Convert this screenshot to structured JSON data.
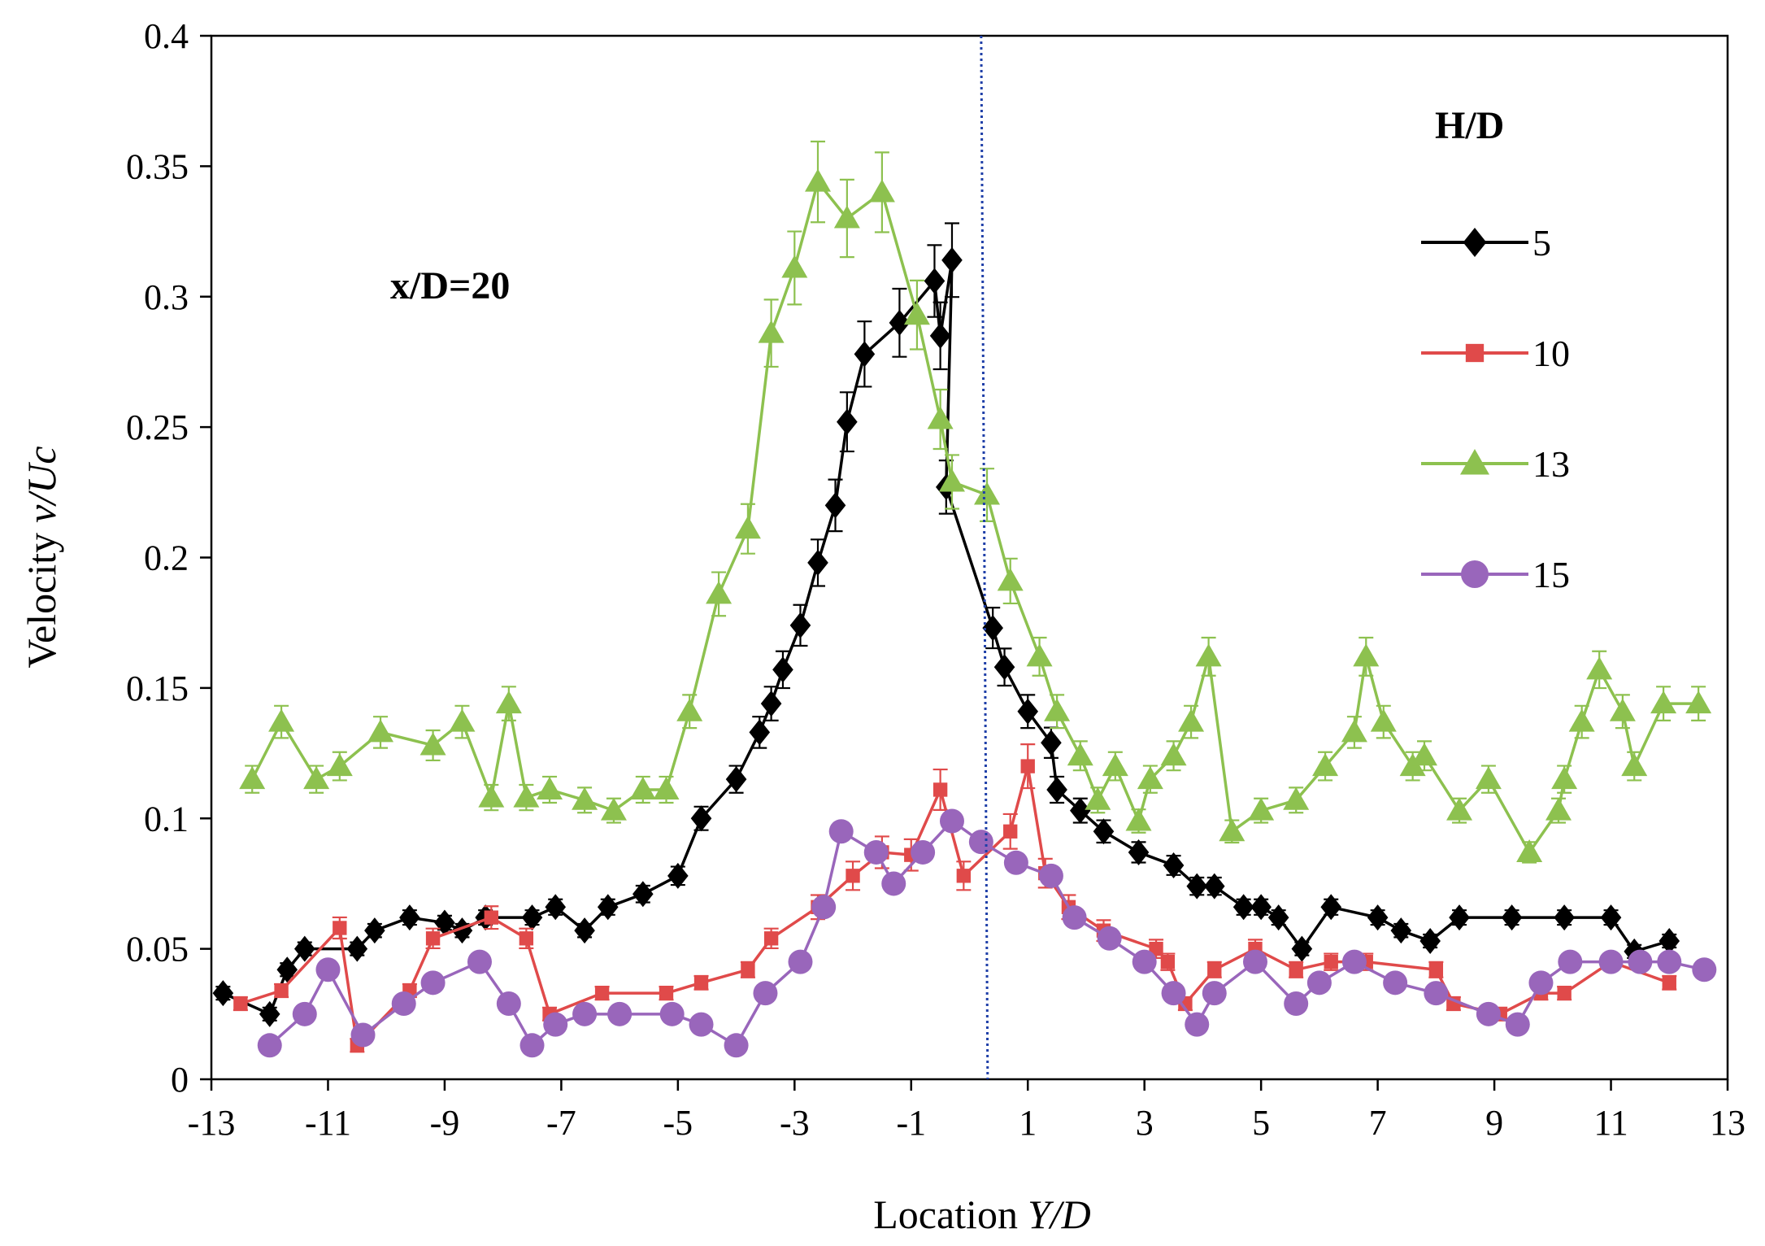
{
  "chart_data": {
    "type": "line",
    "title": "",
    "xlabel": "Location",
    "xlabel_italic": "Y/D",
    "ylabel": "Velocity",
    "ylabel_italic": "v/Uc",
    "xlim": [
      -13,
      13
    ],
    "ylim": [
      0,
      0.4
    ],
    "xticks": [
      "-13",
      "-11",
      "-9",
      "-7",
      "-5",
      "-3",
      "-1",
      "1",
      "3",
      "5",
      "7",
      "9",
      "11",
      "13"
    ],
    "yticks": [
      "0",
      "0.05",
      "0.1",
      "0.15",
      "0.2",
      "0.25",
      "0.3",
      "0.35",
      "0.4"
    ],
    "annotation": "x/D=20",
    "reference_line_x": 0.2,
    "legend_title": "H/D",
    "legend_position": "right",
    "grid": false,
    "series": [
      {
        "name": "5",
        "color": "#000000",
        "marker": "diamond",
        "x": [
          -12.8,
          -12.0,
          -11.7,
          -11.4,
          -10.5,
          -10.2,
          -9.6,
          -9.0,
          -8.7,
          -8.3,
          -7.5,
          -7.1,
          -6.6,
          -6.2,
          -5.6,
          -5.0,
          -4.6,
          -4.0,
          -3.6,
          -3.4,
          -3.2,
          -2.9,
          -2.6,
          -2.3,
          -2.1,
          -1.8,
          -1.2,
          -0.6,
          -0.5,
          -0.3,
          -0.4,
          0.4,
          0.6,
          1.0,
          1.4,
          1.5,
          1.9,
          2.3,
          2.9,
          3.5,
          3.9,
          4.2,
          4.7,
          5.0,
          5.3,
          5.7,
          6.2,
          7.0,
          7.4,
          7.9,
          8.4,
          9.3,
          10.2,
          11.0,
          11.4,
          12.0
        ],
        "y": [
          0.033,
          0.025,
          0.042,
          0.05,
          0.05,
          0.057,
          0.062,
          0.06,
          0.057,
          0.062,
          0.062,
          0.066,
          0.057,
          0.066,
          0.071,
          0.078,
          0.1,
          0.115,
          0.133,
          0.144,
          0.157,
          0.174,
          0.198,
          0.22,
          0.252,
          0.278,
          0.29,
          0.306,
          0.285,
          0.314,
          0.227,
          0.173,
          0.158,
          0.141,
          0.129,
          0.111,
          0.103,
          0.095,
          0.087,
          0.082,
          0.074,
          0.074,
          0.066,
          0.066,
          0.062,
          0.05,
          0.066,
          0.062,
          0.057,
          0.053,
          0.062,
          0.062,
          0.062,
          0.062,
          0.049,
          0.053
        ]
      },
      {
        "name": "10",
        "color": "#e04a4a",
        "marker": "square",
        "x": [
          -12.5,
          -11.8,
          -10.8,
          -10.5,
          -9.6,
          -9.2,
          -8.2,
          -7.6,
          -7.2,
          -6.3,
          -5.2,
          -4.6,
          -3.8,
          -3.4,
          -2.6,
          -2.0,
          -1.5,
          -1.0,
          -0.5,
          -0.1,
          0.7,
          1.0,
          1.3,
          1.7,
          2.3,
          3.2,
          3.4,
          3.7,
          4.2,
          4.9,
          5.6,
          6.2,
          6.8,
          8.0,
          8.3,
          9.1,
          9.8,
          10.2,
          11.0,
          12.0
        ],
        "y": [
          0.029,
          0.034,
          0.058,
          0.013,
          0.034,
          0.054,
          0.062,
          0.054,
          0.025,
          0.033,
          0.033,
          0.037,
          0.042,
          0.054,
          0.066,
          0.078,
          0.087,
          0.086,
          0.111,
          0.078,
          0.095,
          0.12,
          0.079,
          0.066,
          0.057,
          0.05,
          0.045,
          0.029,
          0.042,
          0.05,
          0.042,
          0.045,
          0.045,
          0.042,
          0.029,
          0.025,
          0.033,
          0.033,
          0.045,
          0.037
        ]
      },
      {
        "name": "13",
        "color": "#8dc14f",
        "marker": "triangle",
        "x": [
          -12.3,
          -11.8,
          -11.2,
          -10.8,
          -10.1,
          -9.2,
          -8.7,
          -8.2,
          -7.9,
          -7.6,
          -7.2,
          -6.6,
          -6.1,
          -5.6,
          -5.2,
          -4.8,
          -4.3,
          -3.8,
          -3.4,
          -3.0,
          -2.6,
          -2.1,
          -1.5,
          -0.9,
          -0.5,
          -0.3,
          0.3,
          0.7,
          1.2,
          1.5,
          1.9,
          2.2,
          2.5,
          2.9,
          3.1,
          3.5,
          3.8,
          4.1,
          4.5,
          5.0,
          5.6,
          6.1,
          6.6,
          6.8,
          7.1,
          7.6,
          7.8,
          8.4,
          8.9,
          9.6,
          10.1,
          10.2,
          10.5,
          10.8,
          11.2,
          11.4,
          11.9,
          12.5
        ],
        "y": [
          0.115,
          0.137,
          0.115,
          0.12,
          0.133,
          0.128,
          0.137,
          0.108,
          0.144,
          0.108,
          0.111,
          0.107,
          0.103,
          0.111,
          0.111,
          0.141,
          0.186,
          0.211,
          0.286,
          0.311,
          0.344,
          0.33,
          0.34,
          0.293,
          0.253,
          0.229,
          0.224,
          0.191,
          0.162,
          0.141,
          0.124,
          0.107,
          0.12,
          0.099,
          0.115,
          0.124,
          0.137,
          0.162,
          0.095,
          0.103,
          0.107,
          0.12,
          0.133,
          0.162,
          0.137,
          0.12,
          0.124,
          0.103,
          0.115,
          0.087,
          0.103,
          0.115,
          0.137,
          0.157,
          0.141,
          0.12,
          0.144,
          0.144
        ]
      },
      {
        "name": "15",
        "color": "#9966bb",
        "marker": "circle",
        "x": [
          -12.0,
          -11.4,
          -11.0,
          -10.4,
          -9.7,
          -9.2,
          -8.4,
          -7.9,
          -7.5,
          -7.1,
          -6.6,
          -6.0,
          -5.1,
          -4.6,
          -4.0,
          -3.5,
          -2.9,
          -2.5,
          -2.2,
          -1.6,
          -1.3,
          -0.8,
          -0.3,
          0.2,
          0.8,
          1.4,
          1.8,
          2.4,
          3.0,
          3.5,
          3.9,
          4.2,
          4.9,
          5.6,
          6.0,
          6.6,
          7.3,
          8.0,
          8.9,
          9.4,
          9.8,
          10.3,
          11.0,
          11.5,
          12.0,
          12.6
        ],
        "y": [
          0.013,
          0.025,
          0.042,
          0.017,
          0.029,
          0.037,
          0.045,
          0.029,
          0.013,
          0.021,
          0.025,
          0.025,
          0.025,
          0.021,
          0.013,
          0.033,
          0.045,
          0.066,
          0.095,
          0.087,
          0.075,
          0.087,
          0.099,
          0.091,
          0.083,
          0.078,
          0.062,
          0.054,
          0.045,
          0.033,
          0.021,
          0.033,
          0.045,
          0.029,
          0.037,
          0.045,
          0.037,
          0.033,
          0.025,
          0.021,
          0.037,
          0.045,
          0.045,
          0.045,
          0.045,
          0.042
        ]
      }
    ]
  }
}
